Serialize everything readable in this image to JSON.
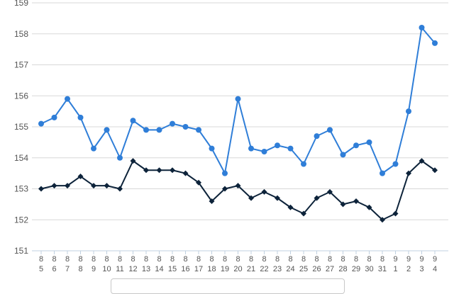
{
  "chart_data": {
    "type": "line",
    "categories": [
      "8\n5",
      "8\n6",
      "8\n7",
      "8\n8",
      "8\n9",
      "8\n10",
      "8\n11",
      "8\n12",
      "8\n13",
      "8\n14",
      "8\n15",
      "8\n16",
      "8\n17",
      "8\n18",
      "8\n19",
      "8\n20",
      "8\n21",
      "8\n22",
      "8\n23",
      "8\n24",
      "8\n25",
      "8\n26",
      "8\n27",
      "8\n28",
      "8\n29",
      "8\n30",
      "8\n31",
      "9\n1",
      "9\n2",
      "9\n3",
      "9\n4"
    ],
    "series": [
      {
        "color": "#2f7ed8",
        "marker": "circle",
        "values": [
          155.1,
          155.3,
          155.9,
          155.3,
          154.3,
          154.9,
          154.0,
          155.2,
          154.9,
          154.9,
          155.1,
          155.0,
          154.9,
          154.3,
          153.5,
          155.9,
          154.3,
          154.2,
          154.4,
          154.3,
          153.8,
          154.7,
          154.9,
          154.1,
          154.4,
          154.5,
          153.5,
          153.8,
          155.5,
          158.2,
          157.7
        ]
      },
      {
        "color": "#0d233a",
        "marker": "diamond",
        "values": [
          153.0,
          153.1,
          153.1,
          153.4,
          153.1,
          153.1,
          153.0,
          153.9,
          153.6,
          153.6,
          153.6,
          153.5,
          153.2,
          152.6,
          153.0,
          153.1,
          152.7,
          152.9,
          152.7,
          152.4,
          152.2,
          152.7,
          152.9,
          152.5,
          152.6,
          152.4,
          152.0,
          152.2,
          153.5,
          153.9,
          153.6
        ]
      }
    ],
    "yticks": [
      151,
      152,
      153,
      154,
      155,
      156,
      157,
      158,
      159
    ],
    "ylim": [
      151,
      159
    ],
    "grid": true,
    "legend": "bottom-center"
  }
}
